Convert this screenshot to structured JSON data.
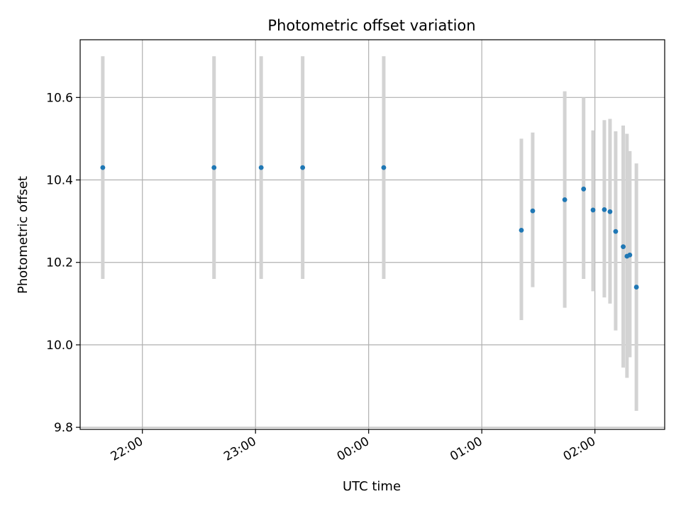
{
  "chart_data": {
    "type": "scatter",
    "title": "Photometric offset variation",
    "xlabel": "UTC time",
    "ylabel": "Photometric offset",
    "x_axis": {
      "kind": "time",
      "reference_date": "2000-01-01",
      "range": [
        "2000-01-01T21:27:00",
        "2000-01-02T02:37:00"
      ],
      "ticks": [
        {
          "time": "2000-01-01T22:00:00",
          "label": "22:00"
        },
        {
          "time": "2000-01-01T23:00:00",
          "label": "23:00"
        },
        {
          "time": "2000-01-02T00:00:00",
          "label": "00:00"
        },
        {
          "time": "2000-01-02T01:00:00",
          "label": "01:00"
        },
        {
          "time": "2000-01-02T02:00:00",
          "label": "02:00"
        }
      ]
    },
    "y_axis": {
      "range": [
        9.795,
        10.74
      ],
      "ticks": [
        9.8,
        10.0,
        10.2,
        10.4,
        10.6
      ],
      "tick_labels": [
        "9.8",
        "10.0",
        "10.2",
        "10.4",
        "10.6"
      ]
    },
    "grid": true,
    "series": [
      {
        "color": "#1f77b4",
        "errorbar_color": "#d3d3d3",
        "points": [
          {
            "time": "2000-01-01T21:39:00",
            "value": 10.43,
            "err_low": 10.16,
            "err_high": 10.7
          },
          {
            "time": "2000-01-01T22:38:00",
            "value": 10.43,
            "err_low": 10.16,
            "err_high": 10.7
          },
          {
            "time": "2000-01-01T23:03:00",
            "value": 10.43,
            "err_low": 10.16,
            "err_high": 10.7
          },
          {
            "time": "2000-01-01T23:25:00",
            "value": 10.43,
            "err_low": 10.16,
            "err_high": 10.7
          },
          {
            "time": "2000-01-02T00:08:00",
            "value": 10.43,
            "err_low": 10.16,
            "err_high": 10.7
          },
          {
            "time": "2000-01-02T01:21:00",
            "value": 10.278,
            "err_low": 10.06,
            "err_high": 10.5
          },
          {
            "time": "2000-01-02T01:27:00",
            "value": 10.325,
            "err_low": 10.14,
            "err_high": 10.515
          },
          {
            "time": "2000-01-02T01:44:00",
            "value": 10.352,
            "err_low": 10.09,
            "err_high": 10.615
          },
          {
            "time": "2000-01-02T01:54:00",
            "value": 10.378,
            "err_low": 10.16,
            "err_high": 10.6
          },
          {
            "time": "2000-01-02T01:59:00",
            "value": 10.327,
            "err_low": 10.13,
            "err_high": 10.52
          },
          {
            "time": "2000-01-02T02:05:00",
            "value": 10.328,
            "err_low": 10.115,
            "err_high": 10.545
          },
          {
            "time": "2000-01-02T02:08:00",
            "value": 10.323,
            "err_low": 10.1,
            "err_high": 10.548
          },
          {
            "time": "2000-01-02T02:11:00",
            "value": 10.275,
            "err_low": 10.035,
            "err_high": 10.518
          },
          {
            "time": "2000-01-02T02:15:00",
            "value": 10.238,
            "err_low": 9.945,
            "err_high": 10.532
          },
          {
            "time": "2000-01-02T02:17:00",
            "value": 10.215,
            "err_low": 9.92,
            "err_high": 10.512
          },
          {
            "time": "2000-01-02T02:18:30",
            "value": 10.218,
            "err_low": 9.97,
            "err_high": 10.47
          },
          {
            "time": "2000-01-02T02:22:00",
            "value": 10.14,
            "err_low": 9.84,
            "err_high": 10.44
          }
        ]
      }
    ]
  }
}
